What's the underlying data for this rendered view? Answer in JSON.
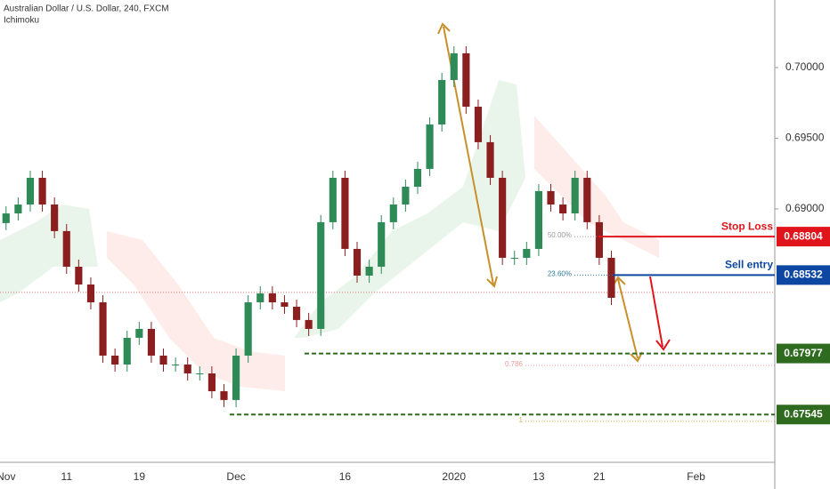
{
  "chart_data": {
    "type": "candlestick",
    "title": "Australian Dollar / U.S. Dollar, 240, FXCM",
    "subtitle": "Ichimoku",
    "categories": [
      "Nov",
      null,
      null,
      null,
      null,
      "11",
      null,
      null,
      null,
      null,
      null,
      "19",
      null,
      null,
      null,
      null,
      null,
      null,
      null,
      "Dec",
      null,
      null,
      null,
      null,
      null,
      null,
      null,
      null,
      "16",
      null,
      null,
      null,
      null,
      null,
      null,
      null,
      null,
      "2020",
      null,
      null,
      null,
      null,
      null,
      null,
      "13",
      null,
      null,
      null,
      null,
      "21",
      null,
      null,
      null,
      null,
      null,
      null,
      null,
      "Feb",
      null,
      null,
      null,
      null,
      null,
      null
    ],
    "series": [
      {
        "up_color": "#2e8b57",
        "down_color": "#8b1e1e",
        "open": [
          0.689,
          0.68968,
          0.69031,
          0.6922,
          0.69031,
          0.68843,
          0.68591,
          0.68465,
          0.68339,
          0.67962,
          0.67899,
          0.68088,
          0.68151,
          0.67962,
          0.67899,
          0.67899,
          0.67836,
          0.67836,
          0.6771,
          0.67648,
          0.67962,
          0.68339,
          0.68402,
          0.68339,
          0.68308,
          0.68214,
          0.68151,
          0.68906,
          0.6922,
          0.68717,
          0.68528,
          0.68591,
          0.68906,
          0.69031,
          0.69157,
          0.69283,
          0.69597,
          0.69912,
          0.70101,
          0.69723,
          0.69472,
          0.6922,
          0.68654,
          0.68654,
          0.68717,
          0.69126,
          0.69031,
          0.68968,
          0.6922,
          0.68906,
          0.68654,
          null,
          null,
          null,
          null,
          null,
          null,
          null,
          null,
          null,
          null,
          null,
          null,
          null
        ],
        "close": [
          0.68968,
          0.69031,
          0.6922,
          0.69031,
          0.68843,
          0.68591,
          0.68465,
          0.68339,
          0.67962,
          0.67899,
          0.68088,
          0.68151,
          0.67962,
          0.67899,
          0.67899,
          0.67836,
          0.67836,
          0.6771,
          0.67648,
          0.67962,
          0.68339,
          0.68402,
          0.68339,
          0.68308,
          0.68214,
          0.68151,
          0.68906,
          0.6922,
          0.68717,
          0.68528,
          0.68591,
          0.68906,
          0.69031,
          0.69157,
          0.69283,
          0.69597,
          0.69912,
          0.70101,
          0.69723,
          0.69472,
          0.6922,
          0.68654,
          0.68654,
          0.68717,
          0.69126,
          0.69031,
          0.68968,
          0.6922,
          0.68906,
          0.68654,
          0.68371,
          null,
          null,
          null,
          null,
          null,
          null,
          null,
          null,
          null,
          null,
          null,
          null,
          null
        ]
      }
    ],
    "ylim": [
      0.67207,
      0.70478
    ],
    "yticks": [
      {
        "value": 0.69,
        "label": "0.69000"
      },
      {
        "value": 0.695,
        "label": "0.69500"
      },
      {
        "value": 0.7,
        "label": "0.70000"
      }
    ],
    "current_price": 0.68409,
    "levels": [
      {
        "name": "Stop Loss",
        "value": 0.68804,
        "color": "#e0151b",
        "style": "solid"
      },
      {
        "name": "Sell entry",
        "value": 0.68532,
        "color": "#0d47a1",
        "style": "solid"
      },
      {
        "value": 0.67977,
        "color": "#2e6b1f",
        "style": "dashed"
      },
      {
        "value": 0.67545,
        "color": "#2e6b1f",
        "style": "dashed"
      }
    ],
    "fib": [
      {
        "label": "50.00%",
        "value": 0.68804
      },
      {
        "label": "23.60%",
        "value": 0.68532
      },
      {
        "label": "0.786",
        "value": 0.67893
      },
      {
        "label": "1",
        "value": 0.67497
      }
    ]
  }
}
